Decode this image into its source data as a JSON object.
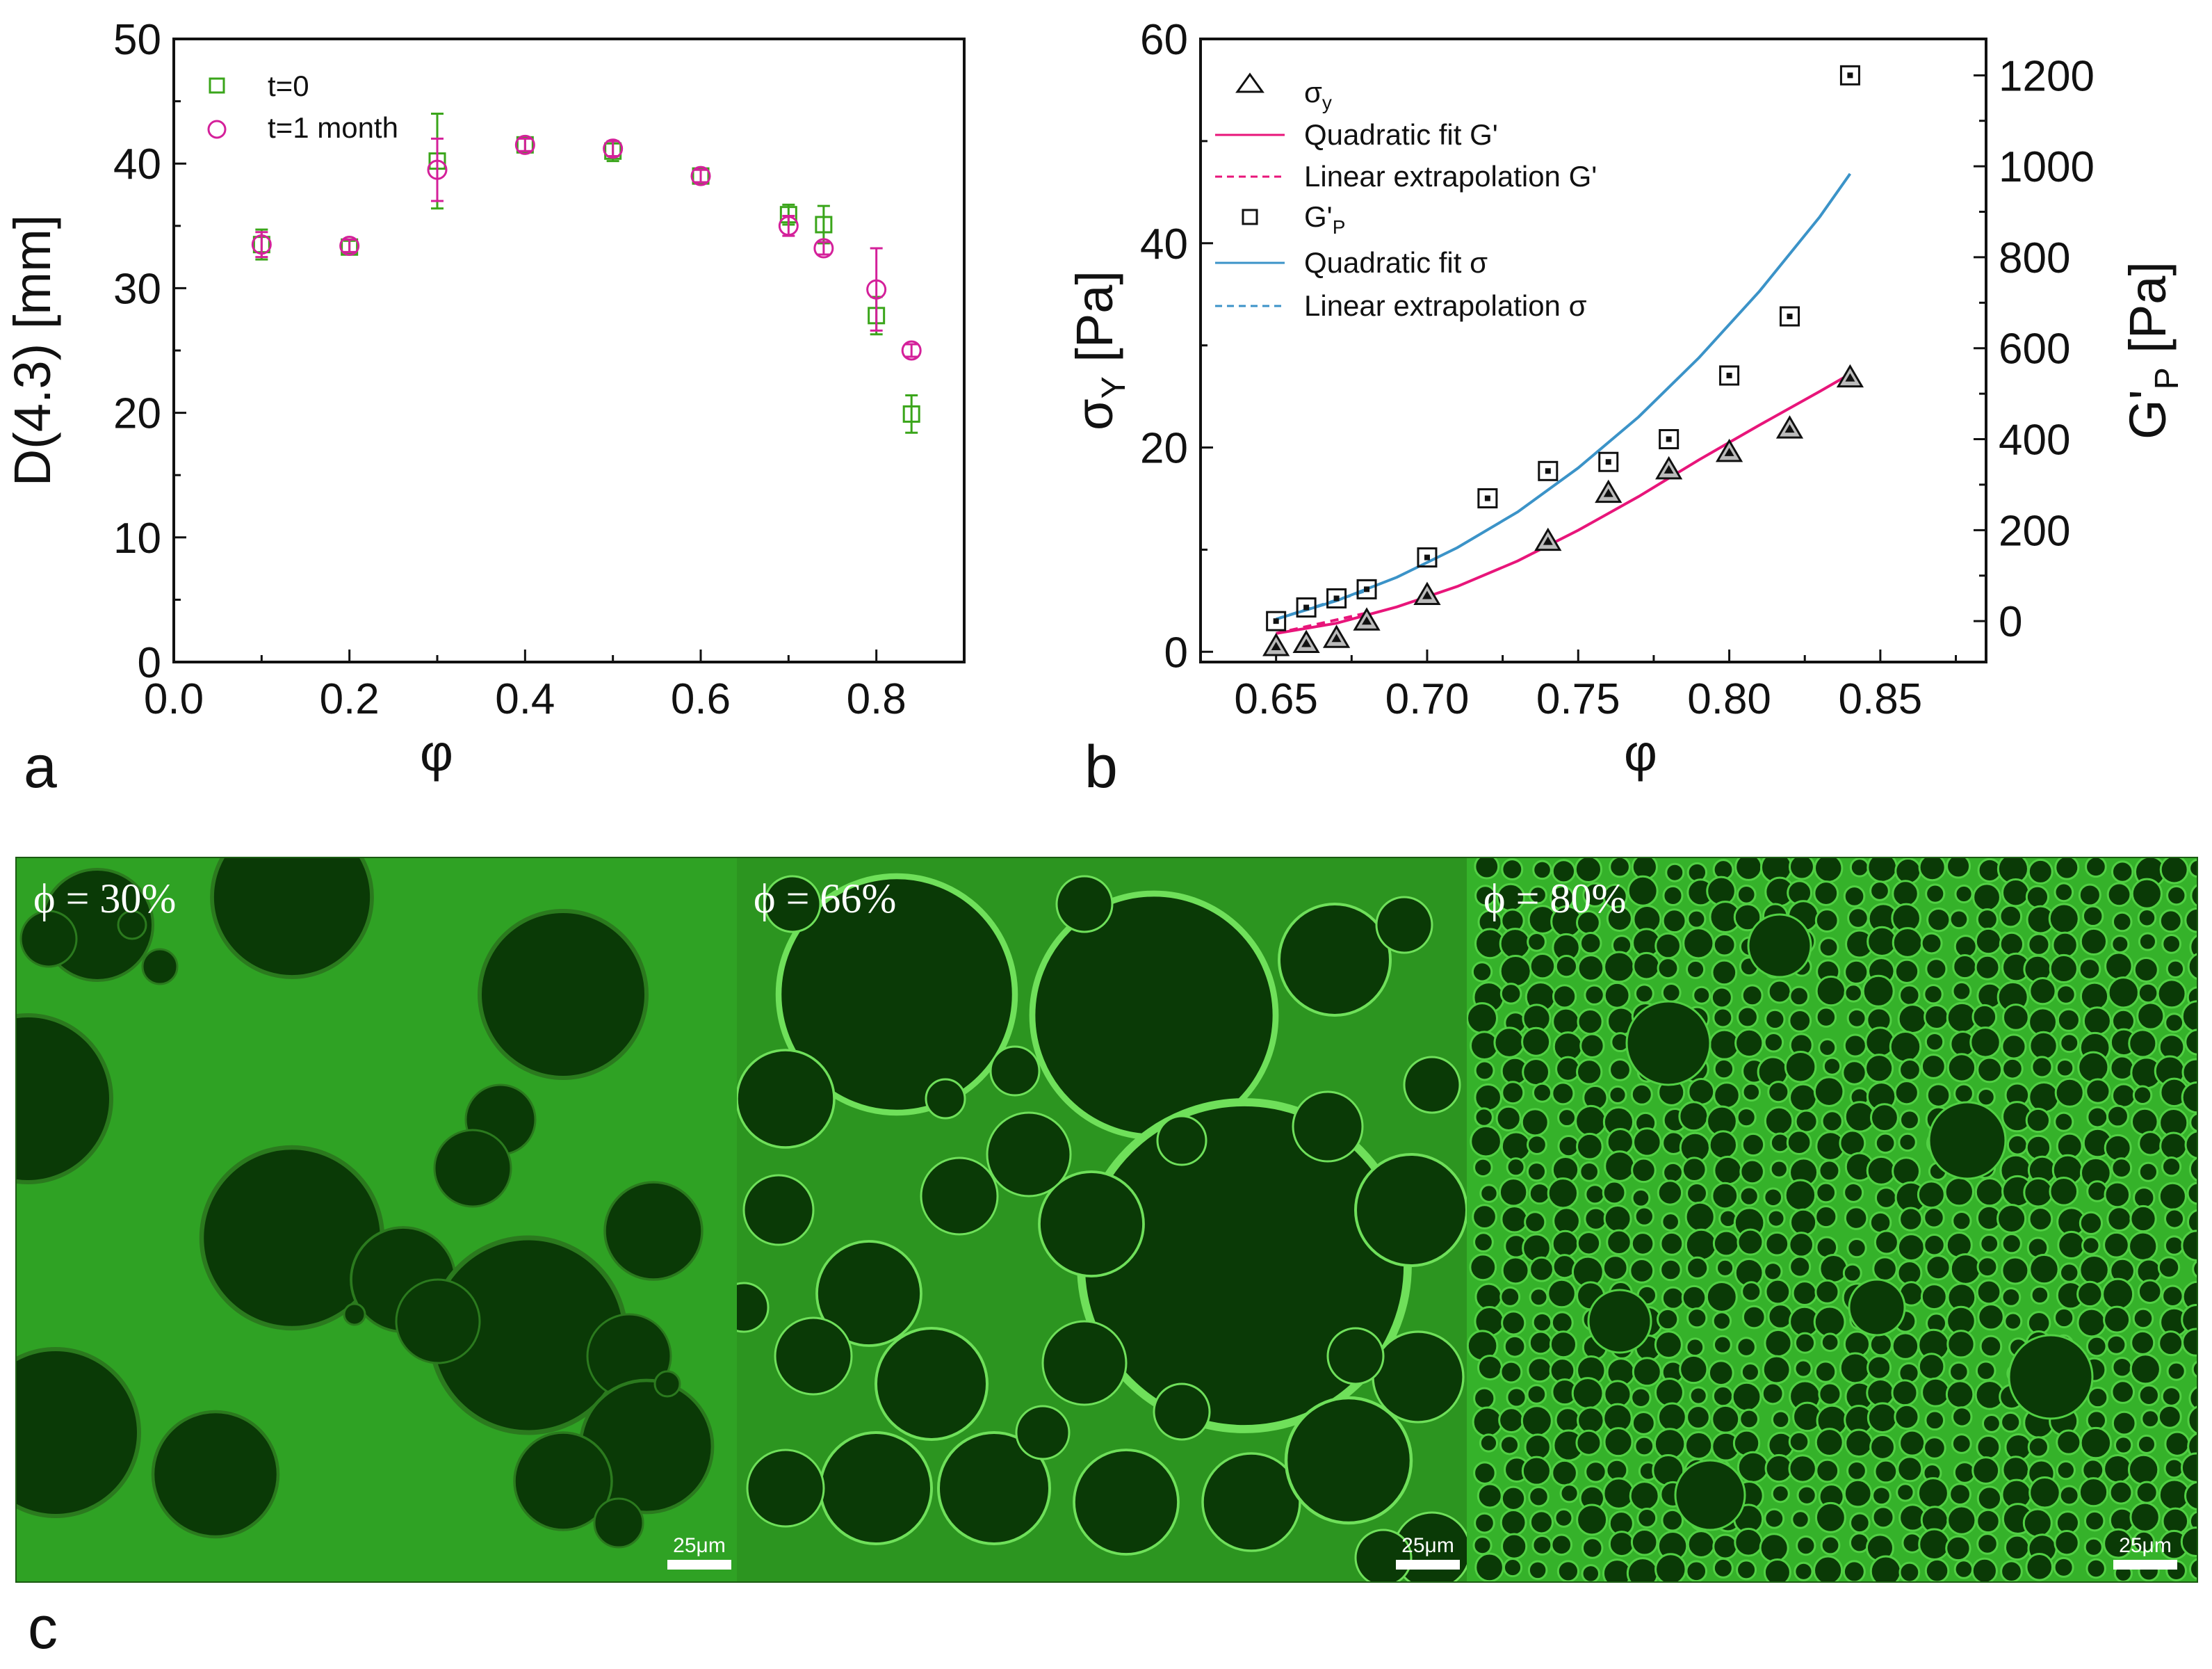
{
  "chart_data": [
    {
      "id": "a",
      "type": "scatter",
      "panel_label": "a",
      "xlabel": "φ",
      "ylabel": "D(4.3) [mm]",
      "xlim": [
        0,
        0.9
      ],
      "ylim": [
        0,
        50
      ],
      "xticks": [
        "0.0",
        "0.2",
        "0.4",
        "0.6",
        "0.8"
      ],
      "yticks": [
        "0",
        "10",
        "20",
        "30",
        "40",
        "50"
      ],
      "legend_position": "top-left",
      "series": [
        {
          "name": "t=0",
          "marker": "square",
          "color": "#3aa51a",
          "x": [
            0.1,
            0.2,
            0.3,
            0.4,
            0.5,
            0.6,
            0.7,
            0.74,
            0.8,
            0.84
          ],
          "y": [
            33.5,
            33.3,
            40.2,
            41.5,
            41.0,
            39.0,
            35.9,
            35.1,
            27.8,
            19.9
          ],
          "err": [
            1.2,
            0.5,
            3.8,
            0.6,
            0.8,
            0.5,
            0.8,
            1.5,
            1.5,
            1.5
          ]
        },
        {
          "name": "t=1 month",
          "marker": "circle",
          "color": "#d4209a",
          "x": [
            0.1,
            0.2,
            0.3,
            0.4,
            0.5,
            0.6,
            0.7,
            0.74,
            0.8,
            0.84
          ],
          "y": [
            33.5,
            33.4,
            39.5,
            41.5,
            41.2,
            39.0,
            35.0,
            33.2,
            29.9,
            25.0
          ],
          "err": [
            1.0,
            0.5,
            2.5,
            0.5,
            0.6,
            0.5,
            0.8,
            0.5,
            3.3,
            0.5
          ]
        }
      ]
    },
    {
      "id": "b",
      "type": "scatter",
      "panel_label": "b",
      "xlabel": "φ",
      "ylabel": "σ",
      "ylabel_sub": "Y",
      "ylabel_unit": " [Pa]",
      "y2label": "G'",
      "y2label_sub": "P",
      "y2label_unit": " [Pa]",
      "xlim": [
        0.625,
        0.885
      ],
      "ylim": [
        -1,
        60
      ],
      "y2lim": [
        -90,
        1280
      ],
      "xticks": [
        "0.65",
        "0.70",
        "0.75",
        "0.80",
        "0.85"
      ],
      "yticks": [
        "0",
        "20",
        "40",
        "60"
      ],
      "y2ticks": [
        "0",
        "200",
        "400",
        "600",
        "800",
        "1000",
        "1200"
      ],
      "legend_position": "top-left",
      "legend": [
        {
          "label": "σ",
          "sub": "y",
          "kind": "triangle",
          "color": "#111111"
        },
        {
          "label": "Quadratic fit G'",
          "kind": "line",
          "color": "#e8157a"
        },
        {
          "label": "Linear extrapolation G'",
          "kind": "dashed",
          "color": "#e8157a"
        },
        {
          "label": "G'",
          "sub": "P",
          "kind": "square",
          "color": "#111111"
        },
        {
          "label": "Quadratic fit σ",
          "kind": "line",
          "color": "#3b93c8"
        },
        {
          "label": "Linear extrapolation σ",
          "kind": "dashed",
          "color": "#3b93c8"
        }
      ],
      "series": [
        {
          "name": "σy",
          "axis": "left",
          "marker": "triangle",
          "color": "#111111",
          "x": [
            0.65,
            0.66,
            0.67,
            0.68,
            0.7,
            0.74,
            0.76,
            0.78,
            0.8,
            0.82,
            0.84
          ],
          "y": [
            0.5,
            0.8,
            1.3,
            3.0,
            5.5,
            10.8,
            15.5,
            17.8,
            19.5,
            21.8,
            26.8
          ]
        },
        {
          "name": "G'P",
          "axis": "right",
          "marker": "square",
          "color": "#111111",
          "x": [
            0.65,
            0.66,
            0.67,
            0.68,
            0.7,
            0.72,
            0.74,
            0.76,
            0.78,
            0.8,
            0.82,
            0.84
          ],
          "y": [
            0,
            30,
            50,
            70,
            140,
            270,
            330,
            350,
            400,
            540,
            670,
            1200
          ]
        },
        {
          "name": "Quadratic fit G'",
          "axis": "left",
          "kind": "line",
          "color": "#e8157a",
          "x": [
            0.65,
            0.67,
            0.69,
            0.71,
            0.73,
            0.75,
            0.77,
            0.79,
            0.81,
            0.83,
            0.84
          ],
          "y": [
            1.8,
            2.8,
            4.4,
            6.4,
            8.9,
            11.9,
            15.2,
            18.8,
            22.2,
            25.5,
            27.2
          ]
        },
        {
          "name": "Linear extrapolation G'",
          "axis": "left",
          "kind": "dashed",
          "color": "#e8157a",
          "x": [
            0.65,
            0.68
          ],
          "y": [
            1.8,
            3.8
          ]
        },
        {
          "name": "Quadratic fit σ",
          "axis": "left",
          "kind": "line",
          "color": "#3b93c8",
          "x": [
            0.65,
            0.67,
            0.69,
            0.71,
            0.73,
            0.75,
            0.77,
            0.79,
            0.81,
            0.83,
            0.84
          ],
          "y": [
            3.2,
            5.0,
            7.3,
            10.2,
            13.7,
            18.0,
            23.0,
            28.8,
            35.3,
            42.6,
            46.8
          ]
        },
        {
          "name": "Linear extrapolation σ",
          "axis": "left",
          "kind": "dashed",
          "color": "#3b93c8",
          "x": [
            0.65,
            0.68
          ],
          "y": [
            3.2,
            6.0
          ]
        }
      ]
    }
  ],
  "micrographs": {
    "panel_label": "c",
    "images": [
      {
        "label": "ϕ = 30%",
        "scale": "25μm"
      },
      {
        "label": "ϕ = 66%",
        "scale": "25μm"
      },
      {
        "label": "ϕ = 80%",
        "scale": "25μm"
      }
    ]
  }
}
